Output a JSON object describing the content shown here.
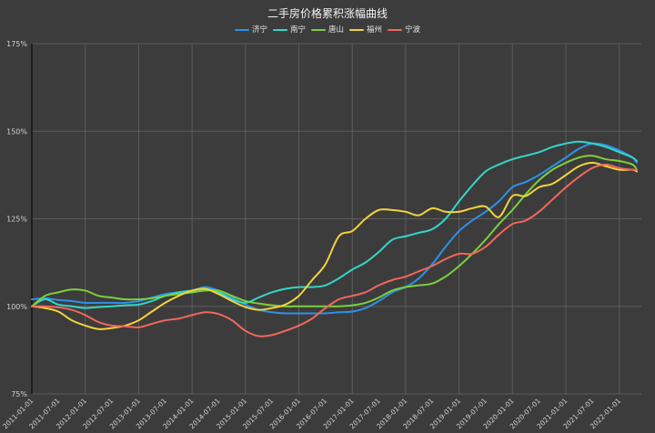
{
  "chart_data": {
    "type": "line",
    "title": "二手房价格累积涨幅曲线",
    "legend_position": "top-center",
    "grid": true,
    "background_color": "#3c3c3c",
    "xlim": [
      "2011-01-01",
      "2022-06-01"
    ],
    "ylim": [
      75,
      175
    ],
    "y_ticks": [
      "75%",
      "100%",
      "125%",
      "150%",
      "175%"
    ],
    "x_ticks": [
      "2011-01-01",
      "2011-07-01",
      "2012-01-01",
      "2012-07-01",
      "2013-01-01",
      "2013-07-01",
      "2014-01-01",
      "2014-07-01",
      "2015-01-01",
      "2015-07-01",
      "2016-01-01",
      "2016-07-01",
      "2017-01-01",
      "2017-07-01",
      "2018-01-01",
      "2018-07-01",
      "2019-01-01",
      "2019-07-01",
      "2020-01-01",
      "2020-07-01",
      "2021-01-01",
      "2021-07-01",
      "2022-01-01"
    ],
    "x": [
      "2011-01-01",
      "2011-04-01",
      "2011-07-01",
      "2011-10-01",
      "2012-01-01",
      "2012-04-01",
      "2012-07-01",
      "2012-10-01",
      "2013-01-01",
      "2013-04-01",
      "2013-07-01",
      "2013-10-01",
      "2014-01-01",
      "2014-04-01",
      "2014-07-01",
      "2014-10-01",
      "2015-01-01",
      "2015-04-01",
      "2015-07-01",
      "2015-10-01",
      "2016-01-01",
      "2016-04-01",
      "2016-07-01",
      "2016-10-01",
      "2017-01-01",
      "2017-04-01",
      "2017-07-01",
      "2017-10-01",
      "2018-01-01",
      "2018-04-01",
      "2018-07-01",
      "2018-10-01",
      "2019-01-01",
      "2019-04-01",
      "2019-07-01",
      "2019-10-01",
      "2020-01-01",
      "2020-04-01",
      "2020-07-01",
      "2020-10-01",
      "2021-01-01",
      "2021-04-01",
      "2021-07-01",
      "2021-10-01",
      "2022-01-01",
      "2022-04-01",
      "2022-05-01"
    ],
    "series": [
      {
        "name": "济宁",
        "color": "#2e91e8",
        "values": [
          102,
          102.3,
          101.8,
          101.5,
          101,
          101,
          101,
          101,
          101.5,
          102.5,
          103.5,
          104,
          104.5,
          105.5,
          104.5,
          102.5,
          100.5,
          99,
          98.3,
          98,
          98,
          98,
          98,
          98.3,
          98.5,
          99.5,
          101.5,
          104,
          105.5,
          108,
          112,
          117,
          121.5,
          124.5,
          127,
          130,
          134,
          135.5,
          137.5,
          140,
          142.5,
          145,
          146.5,
          146,
          144.5,
          142.5,
          141
        ]
      },
      {
        "name": "南宁",
        "color": "#33d6c9",
        "values": [
          100,
          102,
          100.5,
          100,
          99.5,
          99.8,
          100,
          100.3,
          100.5,
          101.5,
          103,
          104,
          104.5,
          105,
          104,
          102,
          101,
          102.5,
          104,
          105,
          105.5,
          105.5,
          106,
          108,
          110.5,
          112.5,
          115.5,
          119,
          120,
          121,
          122,
          125,
          130,
          134.5,
          138.5,
          140.5,
          142,
          143,
          144,
          145.5,
          146.5,
          147,
          146.5,
          145.5,
          144,
          142.5,
          141.5
        ]
      },
      {
        "name": "唐山",
        "color": "#7ccf3d",
        "values": [
          100,
          103,
          104,
          104.8,
          104.5,
          103,
          102.5,
          102,
          102,
          102.3,
          103,
          103.5,
          104,
          104.5,
          104.5,
          103,
          101.5,
          100.8,
          100.3,
          100,
          100,
          100,
          100,
          100,
          100.3,
          101,
          102.5,
          104.5,
          105.5,
          106,
          106.5,
          108.5,
          111.5,
          115,
          119,
          123.5,
          127.5,
          132,
          136,
          139,
          141,
          142.5,
          143,
          142,
          141.5,
          140.5,
          139
        ]
      },
      {
        "name": "福州",
        "color": "#f3d33c",
        "values": [
          100,
          99.5,
          98.5,
          96,
          94.5,
          93.5,
          93.8,
          94.5,
          96,
          98.5,
          101,
          103,
          104.5,
          105,
          103.5,
          101.5,
          99.8,
          99,
          99.5,
          100.5,
          103,
          107.5,
          112,
          120,
          121.5,
          125,
          127.5,
          127.5,
          127,
          126,
          128,
          127,
          127,
          128,
          128.5,
          125.5,
          131.5,
          131.5,
          134,
          135,
          137.5,
          140,
          141,
          140,
          139,
          139,
          138.5
        ]
      },
      {
        "name": "宁波",
        "color": "#f2675b",
        "values": [
          100,
          100,
          99.7,
          99,
          97.5,
          95.5,
          94.5,
          94.3,
          94,
          95,
          96,
          96.5,
          97.5,
          98.3,
          97.8,
          96,
          93,
          91.5,
          91.8,
          93,
          94.5,
          96.5,
          99.5,
          102,
          103,
          104,
          106,
          107.5,
          108.5,
          110,
          111.5,
          113.5,
          115,
          115,
          117,
          120.5,
          123.5,
          124.5,
          127,
          130.5,
          134,
          137,
          139.5,
          140.5,
          139.5,
          139,
          139
        ]
      }
    ]
  }
}
